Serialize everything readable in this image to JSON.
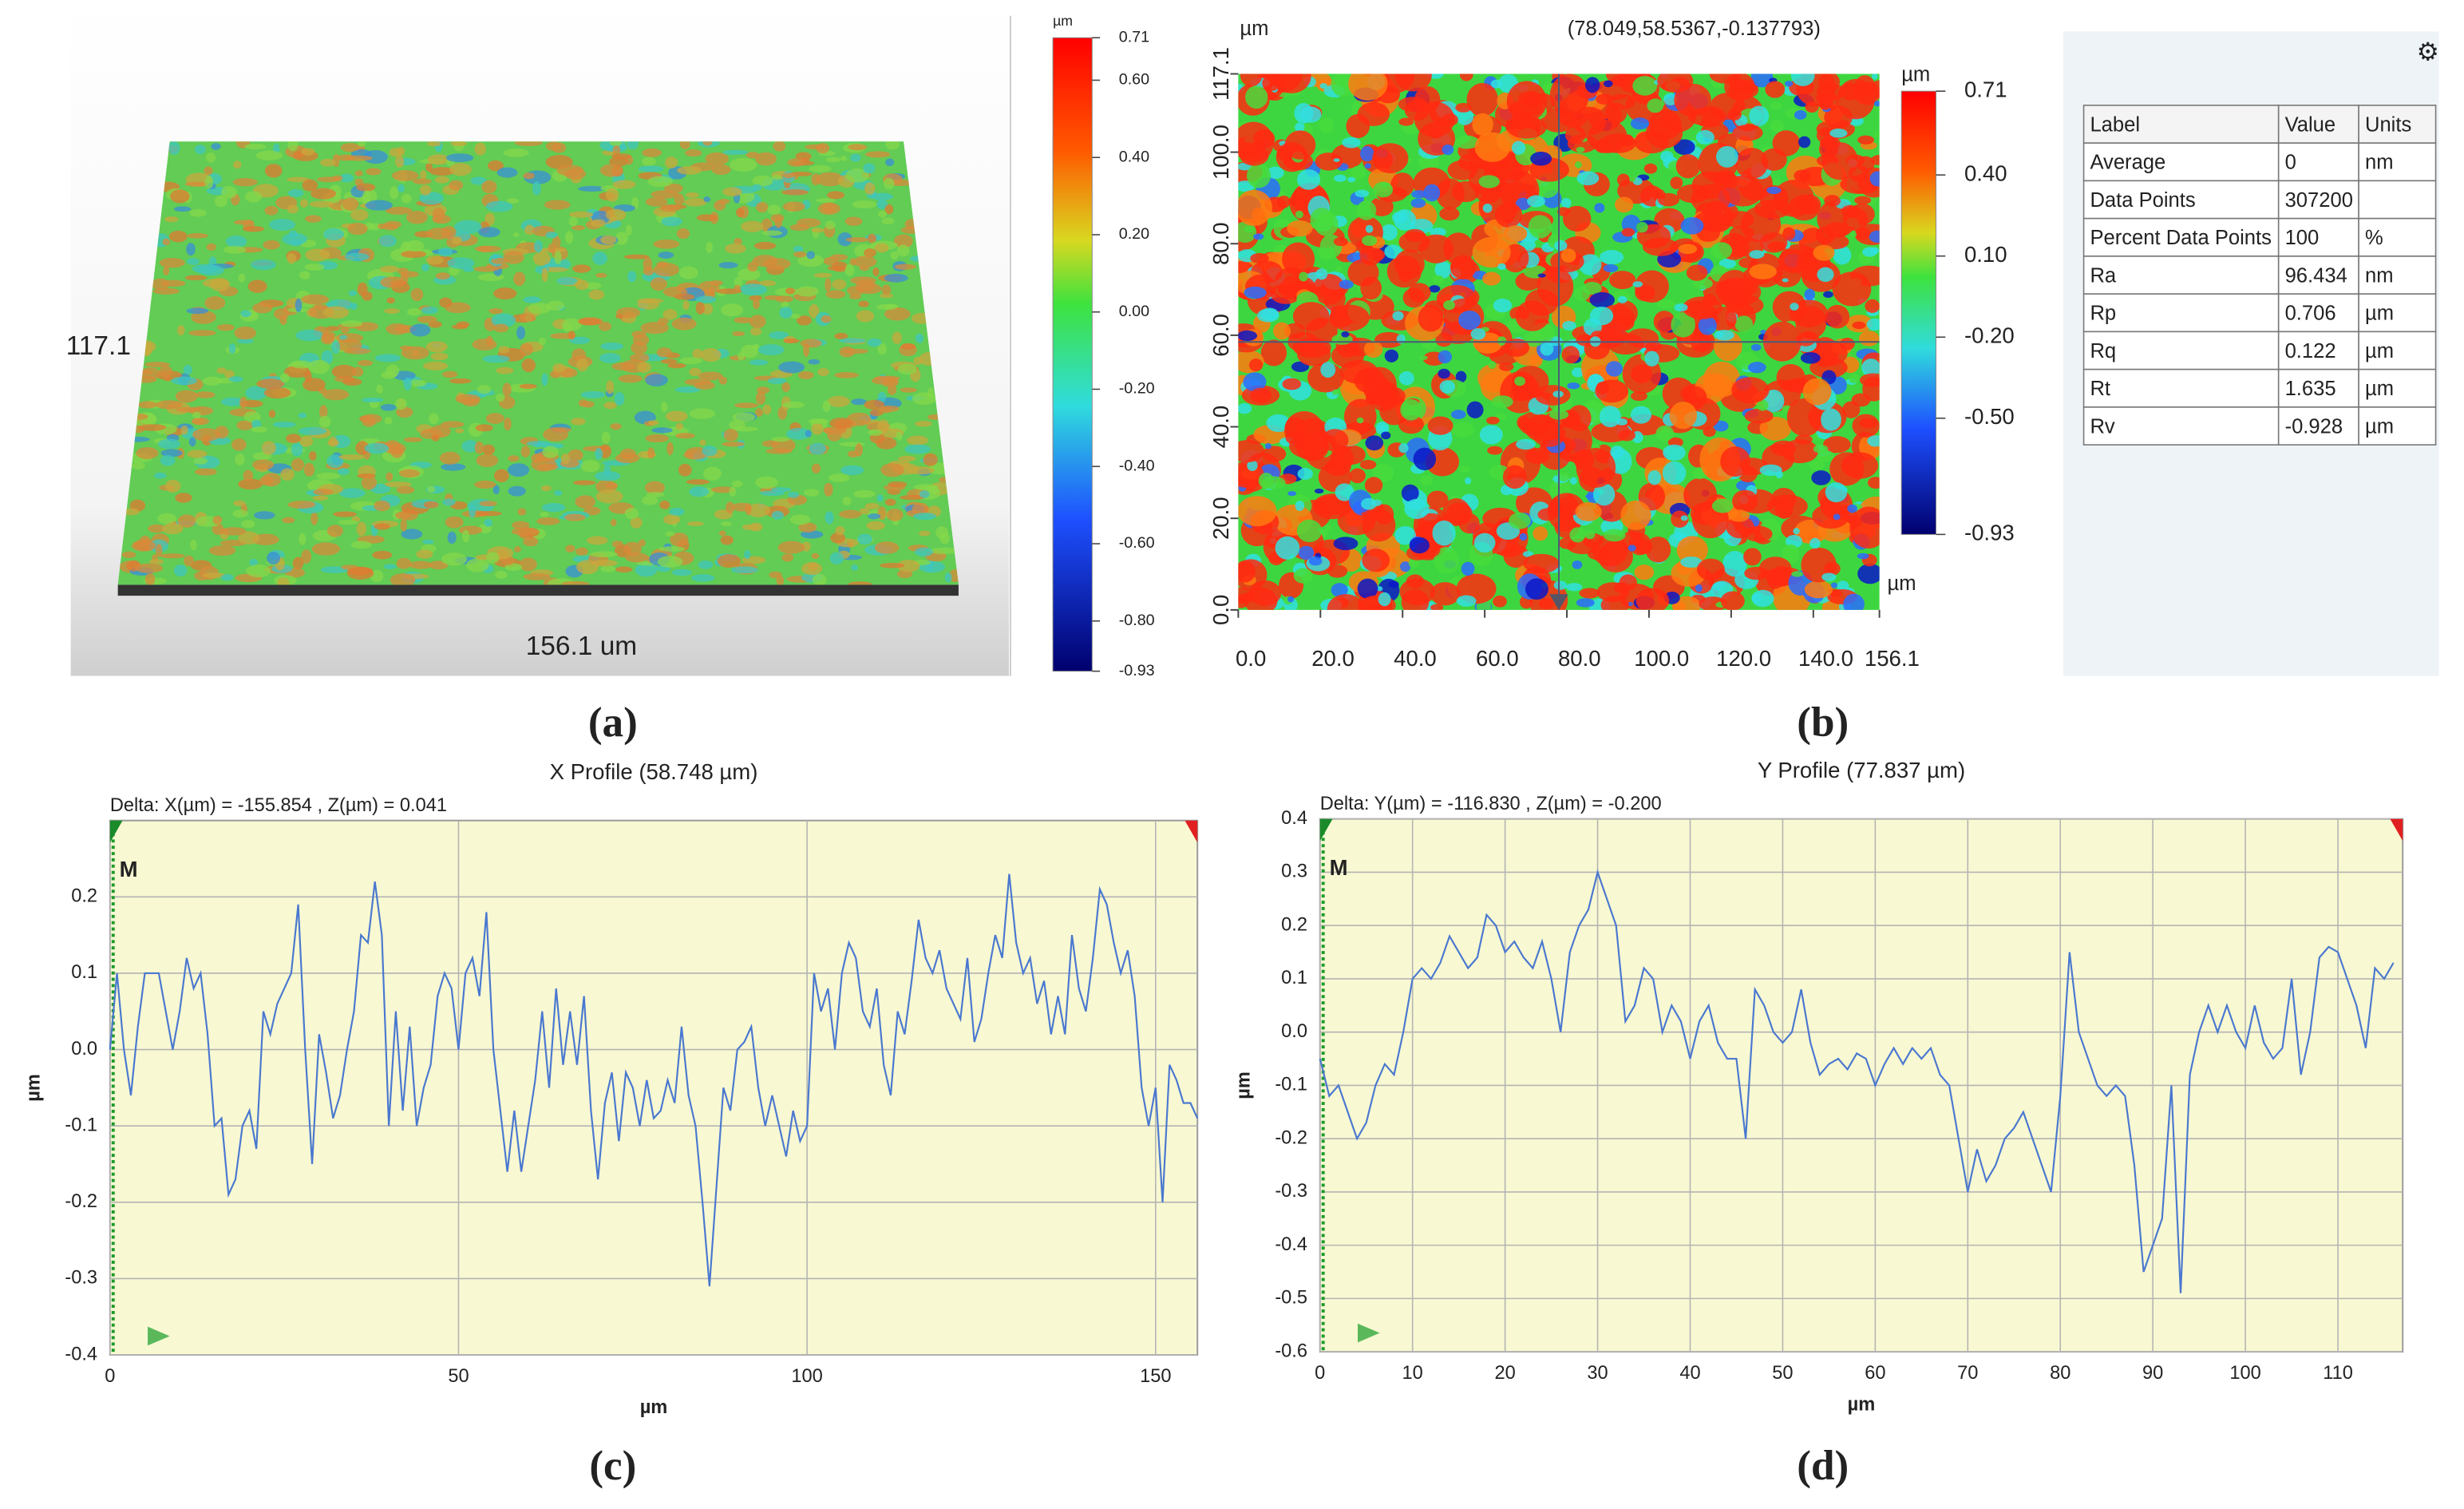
{
  "chart_data": [
    {
      "type": "surface3d",
      "x_label": "156.1 um",
      "y_label": "117.1",
      "caption": "(a)",
      "colorbar": {
        "title": "µm",
        "lim": [
          -0.93,
          0.71
        ],
        "ticks": [
          0.71,
          {
            "value": 0.6,
            "label": "0.60"
          },
          {
            "value": 0.4,
            "label": "0.40"
          },
          {
            "value": 0.2,
            "label": "0.20"
          },
          {
            "value": 0,
            "label": "0.00"
          },
          {
            "value": -0.2,
            "label": "-0.20"
          },
          {
            "value": -0.4,
            "label": "-0.40"
          },
          {
            "value": -0.6,
            "label": "-0.60"
          },
          {
            "value": -0.8,
            "label": "-0.80"
          },
          -0.93
        ]
      }
    },
    {
      "type": "heatmap",
      "caption": "(b)",
      "cursor": "(78.049,58.5367,-0.137793)",
      "x_label": "µm",
      "y_label": "µm",
      "xlim": [
        0,
        156.1
      ],
      "ylim": [
        0,
        117.1
      ],
      "xticks": [
        {
          "value": 0,
          "label": "0.0"
        },
        {
          "value": 20,
          "label": "20.0"
        },
        {
          "value": 40,
          "label": "40.0"
        },
        {
          "value": 60,
          "label": "60.0"
        },
        {
          "value": 80,
          "label": "80.0"
        },
        {
          "value": 100,
          "label": "100.0"
        },
        {
          "value": 120,
          "label": "120.0"
        },
        {
          "value": 140,
          "label": "140.0"
        },
        156.1
      ],
      "yticks": [
        {
          "value": 0,
          "label": "0.0"
        },
        {
          "value": 20,
          "label": "20.0"
        },
        {
          "value": 40,
          "label": "40.0"
        },
        {
          "value": 60,
          "label": "60.0"
        },
        {
          "value": 80,
          "label": "80.0"
        },
        {
          "value": 100,
          "label": "100.0"
        },
        117.1
      ],
      "crosshair": {
        "x": 78.049,
        "y": 58.5367
      },
      "colorbar": {
        "title": "µm",
        "lim": [
          -0.93,
          0.71
        ],
        "ticks": [
          0.71,
          {
            "value": 0.4,
            "label": "0.40"
          },
          {
            "value": 0.1,
            "label": "0.10"
          },
          {
            "value": -0.2,
            "label": "-0.20"
          },
          {
            "value": -0.5,
            "label": "-0.50"
          },
          -0.93
        ]
      },
      "table": {
        "header": [
          "Label",
          "Value",
          "Units"
        ],
        "rows": [
          [
            "Average",
            "0",
            "nm"
          ],
          [
            "Data Points",
            "307200"
          ],
          [
            "Percent Data Points",
            "100",
            "%"
          ],
          [
            "Ra",
            "96.434",
            "nm"
          ],
          [
            "Rp",
            "0.706",
            "µm"
          ],
          [
            "Rq",
            "0.122",
            "µm"
          ],
          [
            "Rt",
            "1.635",
            "µm"
          ],
          [
            "Rv",
            "-0.928",
            "µm"
          ]
        ]
      }
    },
    {
      "type": "line",
      "title": "X Profile (58.748 µm)",
      "caption": "(c)",
      "annotation": "Delta:  X(µm) = -155.854 ,  Z(µm) = 0.041",
      "marker": "M",
      "x_label": "µm",
      "y_label": "µm",
      "xlim": [
        0,
        156
      ],
      "ylim": [
        -0.4,
        0.3
      ],
      "xticks": [
        0,
        50,
        100,
        150
      ],
      "yticks": [
        -0.4,
        -0.3,
        -0.2,
        -0.1,
        {
          "value": 0,
          "label": "0.0"
        },
        0.1,
        0.2
      ],
      "grid": true,
      "x": [
        0,
        1,
        2,
        3,
        4,
        5,
        6,
        7,
        8,
        9,
        10,
        11,
        12,
        13,
        14,
        15,
        16,
        17,
        18,
        19,
        20,
        21,
        22,
        23,
        24,
        25,
        26,
        27,
        28,
        29,
        30,
        31,
        32,
        33,
        34,
        35,
        36,
        37,
        38,
        39,
        40,
        41,
        42,
        43,
        44,
        45,
        46,
        47,
        48,
        49,
        50,
        51,
        52,
        53,
        54,
        55,
        56,
        57,
        58,
        59,
        60,
        61,
        62,
        63,
        64,
        65,
        66,
        67,
        68,
        69,
        70,
        71,
        72,
        73,
        74,
        75,
        76,
        77,
        78,
        79,
        80,
        81,
        82,
        83,
        84,
        85,
        86,
        87,
        88,
        89,
        90,
        91,
        92,
        93,
        94,
        95,
        96,
        97,
        98,
        99,
        100,
        101,
        102,
        103,
        104,
        105,
        106,
        107,
        108,
        109,
        110,
        111,
        112,
        113,
        114,
        115,
        116,
        117,
        118,
        119,
        120,
        121,
        122,
        123,
        124,
        125,
        126,
        127,
        128,
        129,
        130,
        131,
        132,
        133,
        134,
        135,
        136,
        137,
        138,
        139,
        140,
        141,
        142,
        143,
        144,
        145,
        146,
        147,
        148,
        149,
        150,
        151,
        152,
        153,
        154,
        155,
        156
      ],
      "series": [
        {
          "color": "#4a78d0",
          "values": [
            0.0,
            0.1,
            0.0,
            -0.06,
            0.03,
            0.1,
            0.1,
            0.1,
            0.05,
            0.0,
            0.05,
            0.12,
            0.08,
            0.1,
            0.02,
            -0.1,
            -0.09,
            -0.19,
            -0.17,
            -0.1,
            -0.08,
            -0.13,
            0.05,
            0.02,
            0.06,
            0.08,
            0.1,
            0.19,
            0.0,
            -0.15,
            0.02,
            -0.03,
            -0.09,
            -0.06,
            0.0,
            0.05,
            0.15,
            0.14,
            0.22,
            0.15,
            -0.1,
            0.05,
            -0.08,
            0.03,
            -0.1,
            -0.05,
            -0.02,
            0.07,
            0.1,
            0.08,
            0.0,
            0.1,
            0.12,
            0.07,
            0.18,
            0.0,
            -0.08,
            -0.16,
            -0.08,
            -0.16,
            -0.1,
            -0.04,
            0.05,
            -0.05,
            0.08,
            -0.02,
            0.05,
            -0.02,
            0.07,
            -0.08,
            -0.17,
            -0.07,
            -0.03,
            -0.12,
            -0.03,
            -0.05,
            -0.1,
            -0.04,
            -0.09,
            -0.08,
            -0.04,
            -0.07,
            0.03,
            -0.06,
            -0.1,
            -0.2,
            -0.31,
            -0.18,
            -0.05,
            -0.08,
            0.0,
            0.01,
            0.03,
            -0.05,
            -0.1,
            -0.06,
            -0.1,
            -0.14,
            -0.08,
            -0.12,
            -0.1,
            0.1,
            0.05,
            0.08,
            0.0,
            0.1,
            0.14,
            0.12,
            0.05,
            0.03,
            0.08,
            -0.02,
            -0.06,
            0.05,
            0.02,
            0.09,
            0.17,
            0.12,
            0.1,
            0.13,
            0.08,
            0.06,
            0.04,
            0.12,
            0.01,
            0.04,
            0.1,
            0.15,
            0.12,
            0.23,
            0.14,
            0.1,
            0.12,
            0.06,
            0.09,
            0.02,
            0.07,
            0.02,
            0.15,
            0.08,
            0.05,
            0.12,
            0.21,
            0.19,
            0.14,
            0.1,
            0.13,
            0.07,
            -0.05,
            -0.1,
            -0.05,
            -0.2,
            -0.02,
            -0.04,
            -0.07,
            -0.07,
            -0.09
          ]
        }
      ]
    },
    {
      "type": "line",
      "title": "Y Profile (77.837 µm)",
      "caption": "(d)",
      "annotation": "Delta:  Y(µm) = -116.830 ,  Z(µm) = -0.200",
      "marker": "M",
      "x_label": "µm",
      "y_label": "µm",
      "xlim": [
        0,
        117
      ],
      "ylim": [
        -0.6,
        0.4
      ],
      "xticks": [
        0,
        10,
        20,
        30,
        40,
        50,
        60,
        70,
        80,
        90,
        100,
        110
      ],
      "yticks": [
        -0.6,
        -0.5,
        -0.4,
        -0.3,
        -0.2,
        -0.1,
        {
          "value": 0,
          "label": "0.0"
        },
        0.1,
        0.2,
        0.3,
        0.4
      ],
      "grid": true,
      "x": [
        0,
        1,
        2,
        3,
        4,
        5,
        6,
        7,
        8,
        9,
        10,
        11,
        12,
        13,
        14,
        15,
        16,
        17,
        18,
        19,
        20,
        21,
        22,
        23,
        24,
        25,
        26,
        27,
        28,
        29,
        30,
        31,
        32,
        33,
        34,
        35,
        36,
        37,
        38,
        39,
        40,
        41,
        42,
        43,
        44,
        45,
        46,
        47,
        48,
        49,
        50,
        51,
        52,
        53,
        54,
        55,
        56,
        57,
        58,
        59,
        60,
        61,
        62,
        63,
        64,
        65,
        66,
        67,
        68,
        69,
        70,
        71,
        72,
        73,
        74,
        75,
        76,
        77,
        78,
        79,
        80,
        81,
        82,
        83,
        84,
        85,
        86,
        87,
        88,
        89,
        90,
        91,
        92,
        93,
        94,
        95,
        96,
        97,
        98,
        99,
        100,
        101,
        102,
        103,
        104,
        105,
        106,
        107,
        108,
        109,
        110,
        111,
        112,
        113,
        114,
        115,
        116
      ],
      "series": [
        {
          "color": "#4a78d0",
          "values": [
            -0.05,
            -0.12,
            -0.1,
            -0.15,
            -0.2,
            -0.17,
            -0.1,
            -0.06,
            -0.08,
            0.0,
            0.1,
            0.12,
            0.1,
            0.13,
            0.18,
            0.15,
            0.12,
            0.14,
            0.22,
            0.2,
            0.15,
            0.17,
            0.14,
            0.12,
            0.17,
            0.1,
            0.0,
            0.15,
            0.2,
            0.23,
            0.3,
            0.25,
            0.2,
            0.02,
            0.05,
            0.12,
            0.1,
            0.0,
            0.05,
            0.02,
            -0.05,
            0.02,
            0.05,
            -0.02,
            -0.05,
            -0.05,
            -0.2,
            0.08,
            0.05,
            0.0,
            -0.02,
            0.0,
            0.08,
            -0.02,
            -0.08,
            -0.06,
            -0.05,
            -0.07,
            -0.04,
            -0.05,
            -0.1,
            -0.06,
            -0.03,
            -0.06,
            -0.03,
            -0.05,
            -0.03,
            -0.08,
            -0.1,
            -0.2,
            -0.3,
            -0.22,
            -0.28,
            -0.25,
            -0.2,
            -0.18,
            -0.15,
            -0.2,
            -0.25,
            -0.3,
            -0.12,
            0.15,
            0.0,
            -0.05,
            -0.1,
            -0.12,
            -0.1,
            -0.12,
            -0.25,
            -0.45,
            -0.4,
            -0.35,
            -0.1,
            -0.49,
            -0.08,
            0.0,
            0.05,
            0.0,
            0.05,
            0.0,
            -0.03,
            0.05,
            -0.02,
            -0.05,
            -0.03,
            0.1,
            -0.08,
            0.0,
            0.14,
            0.16,
            0.15,
            0.1,
            0.05,
            -0.03,
            0.12,
            0.1,
            0.13
          ]
        }
      ]
    }
  ]
}
